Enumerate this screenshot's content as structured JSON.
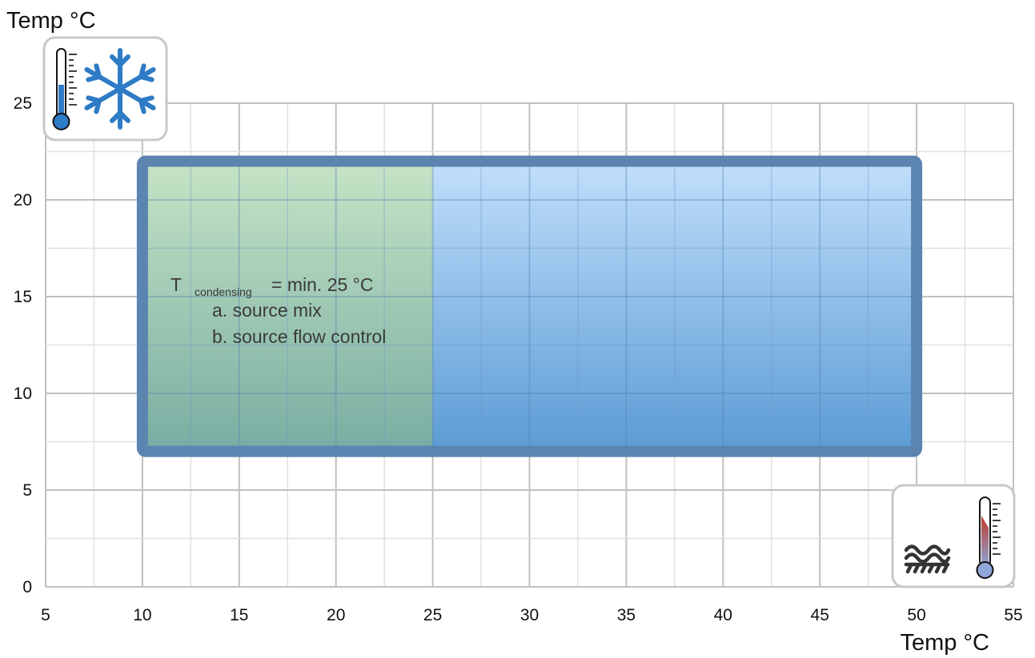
{
  "chart_data": {
    "type": "area",
    "xlabel": "Temp °C",
    "ylabel": "Temp °C",
    "xlim": [
      5,
      55
    ],
    "ylim": [
      0,
      25
    ],
    "x_ticks": [
      5,
      10,
      15,
      20,
      25,
      30,
      35,
      40,
      45,
      50,
      55
    ],
    "y_ticks": [
      0,
      5,
      10,
      15,
      20,
      25
    ],
    "grid": true,
    "regions": [
      {
        "x": [
          10,
          50
        ],
        "y": [
          7,
          22
        ],
        "kind": "operating-envelope",
        "fill_top": "#c1dffb",
        "fill_bottom": "#5b9bd5",
        "border": "#5b84b1"
      },
      {
        "x": [
          10,
          25
        ],
        "y": [
          7,
          22
        ],
        "kind": "condensing-limit",
        "fill_top": "#c6e4c4",
        "fill_bottom": "#7aaea0"
      }
    ],
    "annotation": {
      "main": "T",
      "subscript": "condensing",
      "rest": "= min. 25 °C",
      "lines": [
        "a. source mix",
        "b. source flow control"
      ]
    },
    "icons": {
      "y_axis": "cold-thermometer-snowflake-icon",
      "x_axis": "heating-thermometer-icon"
    },
    "colors": {
      "grid_major": "#c0c0c0",
      "grid_minor": "#e0e0e0",
      "cold": "#2e7bc6",
      "warm": "#c0392b"
    }
  }
}
